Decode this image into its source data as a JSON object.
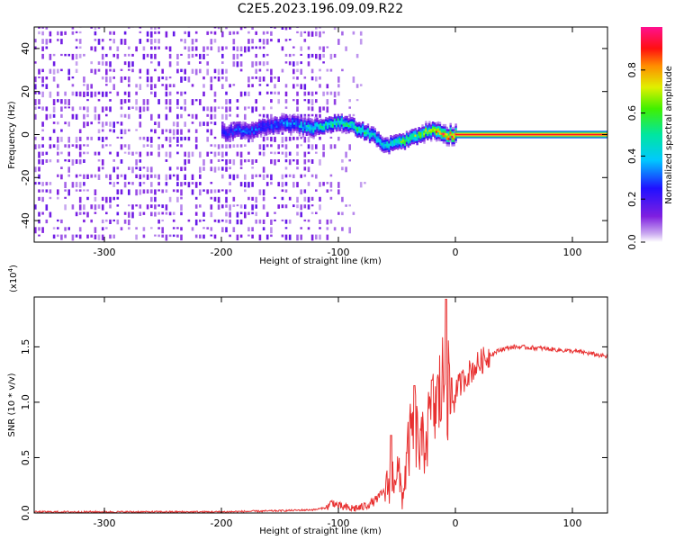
{
  "title": "C2E5.2023.196.09.09.R22",
  "chart_data": [
    {
      "type": "heatmap",
      "xlabel": "Height of straight line (km)",
      "ylabel": "Frequency (Hz)",
      "xlim": [
        -360,
        130
      ],
      "ylim": [
        -50,
        50
      ],
      "xticks": [
        -300,
        -200,
        -100,
        0,
        100
      ],
      "yticks": [
        -40,
        -20,
        0,
        20,
        40
      ],
      "colorbar": {
        "label": "Normalized spectral amplitude",
        "range": [
          0,
          1
        ],
        "ticks": [
          "0.0",
          "0.2",
          "0.4",
          "0.6",
          "0.8"
        ],
        "colormap": "white-purple-blue-cyan-green-yellow-red-magenta"
      },
      "ridge": {
        "x": [
          -200,
          -180,
          -160,
          -140,
          -125,
          -110,
          -100,
          -90,
          -80,
          -70,
          -60,
          -50,
          -40,
          -30,
          -20,
          -15,
          -10,
          -5,
          0,
          50,
          130
        ],
        "frequency": [
          1,
          2,
          4,
          5,
          3,
          4,
          6,
          4,
          2,
          -1,
          -5,
          -4,
          -2,
          0,
          2,
          1,
          0,
          0,
          0,
          0,
          0
        ],
        "amplitude": [
          0.25,
          0.3,
          0.3,
          0.35,
          0.45,
          0.5,
          0.55,
          0.5,
          0.55,
          0.45,
          0.5,
          0.55,
          0.6,
          0.65,
          0.75,
          0.8,
          0.85,
          0.9,
          0.95,
          0.95,
          0.95
        ]
      },
      "noise_region": [
        -360,
        -100
      ]
    },
    {
      "type": "line",
      "xlabel": "Height of straight line (km)",
      "ylabel": "SNR (10 * v/v)",
      "multiplier": "(x10",
      "multiplier_exp": "4",
      "multiplier_close": ")",
      "xlim": [
        -360,
        130
      ],
      "ylim": [
        0,
        1.95
      ],
      "xticks": [
        -300,
        -200,
        -100,
        0,
        100
      ],
      "yticks": [
        "0.0",
        "0.5",
        "1.0",
        "1.5"
      ],
      "color": "#e83030",
      "series": [
        {
          "x": [
            -360,
            -300,
            -250,
            -200,
            -150,
            -120,
            -110,
            -105,
            -100,
            -90,
            -80,
            -70,
            -60,
            -50,
            -45,
            -40,
            -35,
            -30,
            -25,
            -20,
            -15,
            -10,
            -5,
            0,
            10,
            20,
            30,
            40,
            50,
            70,
            90,
            110,
            130
          ],
          "values": [
            0.01,
            0.01,
            0.01,
            0.01,
            0.02,
            0.03,
            0.05,
            0.1,
            0.06,
            0.04,
            0.05,
            0.1,
            0.2,
            0.4,
            0.15,
            0.6,
            0.8,
            0.55,
            0.7,
            0.9,
            1.0,
            1.2,
            1.05,
            1.1,
            1.25,
            1.35,
            1.43,
            1.48,
            1.5,
            1.49,
            1.47,
            1.45,
            1.41
          ]
        }
      ],
      "spikes": [
        {
          "x": -8,
          "y": 1.93
        },
        {
          "x": -20,
          "y": 1.2
        },
        {
          "x": -35,
          "y": 1.15
        },
        {
          "x": -55,
          "y": 0.7
        }
      ]
    }
  ]
}
